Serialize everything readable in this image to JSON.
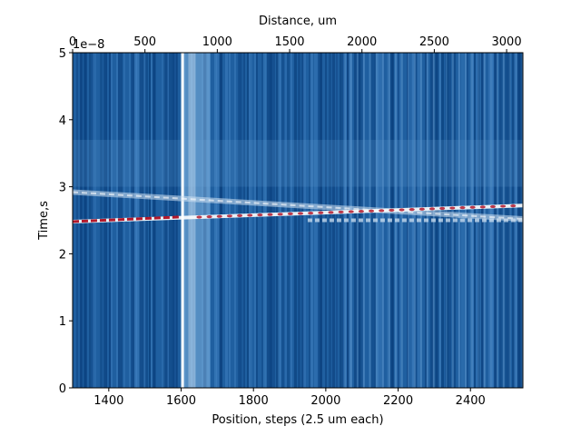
{
  "chart_data": {
    "type": "heatmap",
    "colormap": "RdBu_r",
    "xlabel": "Position, steps (2.5 um each)",
    "ylabel": "Time,s",
    "x2label": "Distance, um",
    "y_offset_label": "1e−8",
    "xlim": [
      1300,
      2545
    ],
    "ylim": [
      0,
      5
    ],
    "x2lim": [
      0,
      3112.5
    ],
    "xticks": [
      1400,
      1600,
      1800,
      2000,
      2200,
      2400
    ],
    "yticks": [
      0,
      1,
      2,
      3,
      4,
      5
    ],
    "x2ticks": [
      0,
      500,
      1000,
      1500,
      2000,
      2500,
      3000
    ],
    "bright_column_x": [
      1600,
      1608
    ],
    "lower_band": {
      "x": [
        1300,
        2545
      ],
      "y": [
        2.48,
        2.72
      ]
    },
    "upper_band": {
      "x": [
        1300,
        2545
      ],
      "y": [
        2.92,
        2.52
      ]
    },
    "secondary_band_y": 2.5,
    "grid": false,
    "colors": {
      "background": "#1f5fa0",
      "dark": "#083d7a",
      "light": "#cfe1f2",
      "hot": "#b2182b"
    }
  }
}
